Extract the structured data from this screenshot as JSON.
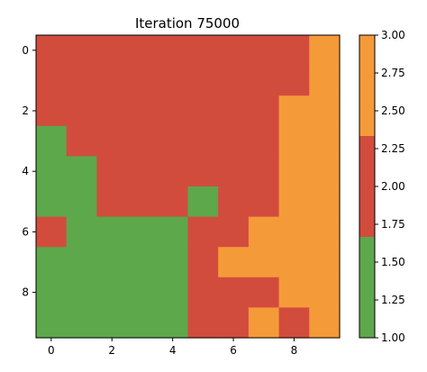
{
  "chart_data": {
    "type": "heatmap",
    "title": "Iteration 75000",
    "xlabel": "",
    "ylabel": "",
    "rows": 10,
    "cols": 10,
    "x_ticks": [
      0,
      2,
      4,
      6,
      8
    ],
    "y_ticks": [
      0,
      2,
      4,
      6,
      8
    ],
    "values": [
      [
        2,
        2,
        2,
        2,
        2,
        2,
        2,
        2,
        2,
        3
      ],
      [
        2,
        2,
        2,
        2,
        2,
        2,
        2,
        2,
        2,
        3
      ],
      [
        2,
        2,
        2,
        2,
        2,
        2,
        2,
        2,
        3,
        3
      ],
      [
        1,
        2,
        2,
        2,
        2,
        2,
        2,
        2,
        3,
        3
      ],
      [
        1,
        1,
        2,
        2,
        2,
        2,
        2,
        2,
        3,
        3
      ],
      [
        1,
        1,
        2,
        2,
        2,
        1,
        2,
        2,
        3,
        3
      ],
      [
        2,
        1,
        1,
        1,
        1,
        2,
        2,
        3,
        3,
        3
      ],
      [
        1,
        1,
        1,
        1,
        1,
        2,
        3,
        3,
        3,
        3
      ],
      [
        1,
        1,
        1,
        1,
        1,
        2,
        2,
        2,
        3,
        3
      ],
      [
        1,
        1,
        1,
        1,
        1,
        2,
        2,
        3,
        2,
        3
      ]
    ],
    "colorbar": {
      "vmin": 1.0,
      "vmax": 3.0,
      "ticks": [
        "1.00",
        "1.25",
        "1.50",
        "1.75",
        "2.00",
        "2.25",
        "2.50",
        "2.75",
        "3.00"
      ],
      "colors": {
        "1": "#5da84b",
        "2": "#d24c3e",
        "3": "#f59a39"
      }
    }
  }
}
